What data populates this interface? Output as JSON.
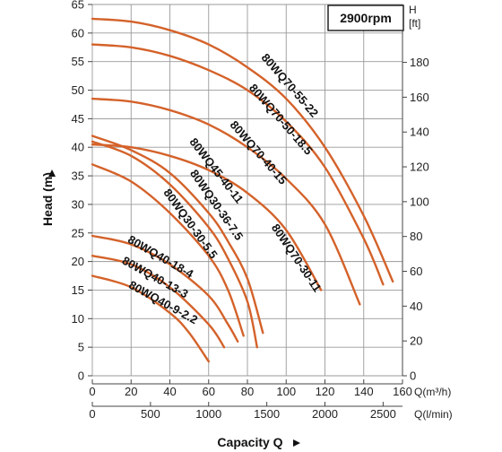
{
  "chart_data": {
    "type": "line",
    "title": "2900rpm",
    "xlabel": "Capacity Q",
    "ylabel": "Head (m)",
    "x_unit": "Q(m³/h)",
    "x2_unit": "Q(l/min)",
    "y2_unit_top": "H",
    "y2_unit_bottom": "[ft]",
    "xlim": [
      0,
      160
    ],
    "ylim": [
      0,
      65
    ],
    "x_ticks": [
      0,
      20,
      40,
      60,
      80,
      100,
      120,
      140,
      160
    ],
    "x_ticks_labels": [
      "0",
      "20",
      "40",
      "60",
      "80",
      "100",
      "120",
      "140",
      "160"
    ],
    "x2_ticks": [
      0,
      500,
      1000,
      1500,
      2000,
      2500
    ],
    "x2_ticks_labels": [
      "0",
      "500",
      "1000",
      "1500",
      "2000",
      "2500"
    ],
    "y_ticks": [
      0,
      5,
      10,
      15,
      20,
      25,
      30,
      35,
      40,
      45,
      50,
      55,
      60,
      65
    ],
    "y_ticks_labels": [
      "0",
      "5",
      "10",
      "15",
      "20",
      "25",
      "30",
      "35",
      "40",
      "45",
      "50",
      "55",
      "60",
      "65"
    ],
    "y2_ticks": [
      0,
      20,
      40,
      60,
      80,
      100,
      120,
      140,
      160,
      180
    ],
    "y2_ticks_labels": [
      "0",
      "20",
      "40",
      "60",
      "80",
      "100",
      "120",
      "140",
      "160",
      "180"
    ],
    "grid": true,
    "line_color": "#d4622a",
    "series": [
      {
        "name": "80WQ70-55-22",
        "x": [
          0,
          20,
          40,
          60,
          80,
          100,
          120,
          140,
          155
        ],
        "y": [
          62.5,
          62,
          60.5,
          58,
          54,
          48.5,
          40,
          28,
          16.5
        ]
      },
      {
        "name": "80WQ70-50-18.5",
        "x": [
          0,
          20,
          40,
          60,
          80,
          100,
          120,
          140,
          150
        ],
        "y": [
          58,
          57.5,
          56,
          53.5,
          50,
          44.5,
          36.5,
          24,
          16
        ]
      },
      {
        "name": "80WQ70-40-15",
        "x": [
          0,
          20,
          40,
          60,
          80,
          100,
          120,
          138
        ],
        "y": [
          48.5,
          48,
          46.5,
          44,
          40,
          34.5,
          26.5,
          12.5
        ]
      },
      {
        "name": "80WQ70-30-11",
        "x": [
          0,
          20,
          40,
          60,
          80,
          100,
          118
        ],
        "y": [
          40.5,
          40,
          38.5,
          36,
          32,
          25.5,
          15
        ]
      },
      {
        "name": "80WQ45-40-11",
        "x": [
          0,
          20,
          40,
          60,
          70,
          80,
          88
        ],
        "y": [
          42,
          39.5,
          35.5,
          28.5,
          23.5,
          17,
          7.5
        ]
      },
      {
        "name": "80WQ30-36-7.5",
        "x": [
          0,
          20,
          40,
          60,
          70,
          80,
          85
        ],
        "y": [
          41,
          38.5,
          33.5,
          26,
          20.5,
          13,
          5
        ]
      },
      {
        "name": "80WQ30-30-5.5",
        "x": [
          0,
          20,
          40,
          60,
          70,
          78
        ],
        "y": [
          37,
          34,
          28.5,
          21,
          15,
          7
        ]
      },
      {
        "name": "80WQ40-18-4",
        "x": [
          0,
          20,
          40,
          60,
          70,
          75
        ],
        "y": [
          24.5,
          23,
          19.5,
          14,
          9,
          6
        ]
      },
      {
        "name": "80WQ40-13-3",
        "x": [
          0,
          20,
          40,
          60,
          68
        ],
        "y": [
          21,
          19.5,
          15.5,
          9,
          5
        ]
      },
      {
        "name": "80WQ40-9-2.2",
        "x": [
          0,
          20,
          40,
          50,
          60
        ],
        "y": [
          17.5,
          15.5,
          11,
          7.5,
          2.5
        ]
      }
    ]
  }
}
